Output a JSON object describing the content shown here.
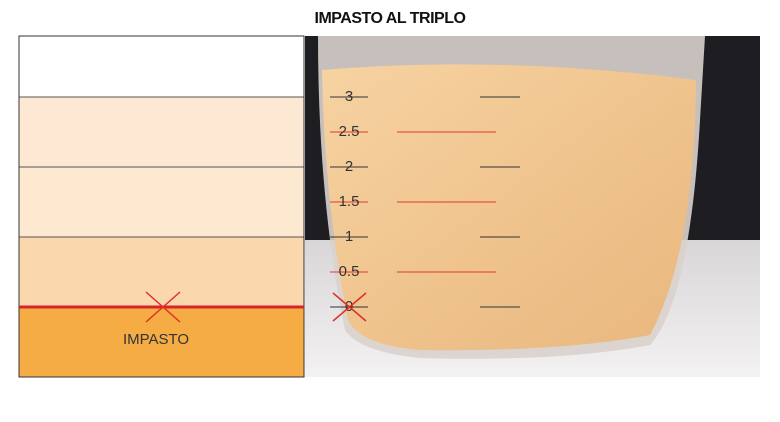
{
  "title": "IMPASTO AL TRIPLO",
  "left_panel": {
    "label": "IMPASTO"
  },
  "scale": {
    "labels": [
      "3",
      "2.5",
      "2",
      "1.5",
      "1",
      "0.5",
      "0"
    ]
  }
}
